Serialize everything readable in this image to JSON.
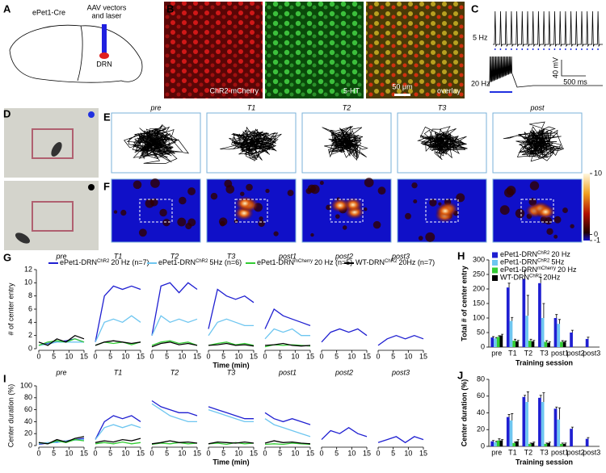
{
  "panel_letters": [
    "A",
    "B",
    "C",
    "D",
    "E",
    "F",
    "G",
    "H",
    "I",
    "J"
  ],
  "panel_a": {
    "strain": "ePet1-Cre",
    "injection": [
      "AAV vectors",
      "and laser"
    ],
    "target": "DRN"
  },
  "panel_b": {
    "labels": [
      "ChR2-mCherry",
      "5-HT",
      "overlay"
    ],
    "scale_bar": "50 μm"
  },
  "panel_c": {
    "traces": [
      "5 Hz",
      "20 Hz"
    ],
    "scale_y": "40 mV",
    "scale_x": "500 ms"
  },
  "panel_e": {
    "sessions": [
      "pre",
      "T1",
      "T2",
      "T3",
      "post"
    ]
  },
  "panel_f": {
    "colorbar": {
      "lim": [
        -1,
        10
      ],
      "ticks": [
        10,
        0,
        -1
      ]
    }
  },
  "chart_data": [
    {
      "type": "line",
      "ylabel": "# of center entry",
      "xlabel": "Time (min)",
      "sessions": [
        "pre",
        "T1",
        "T2",
        "T3",
        "post1",
        "post2",
        "post3"
      ],
      "x": [
        0,
        3,
        6,
        9,
        12,
        15
      ],
      "xlim": [
        0,
        15
      ],
      "xticks": [
        0,
        5,
        10,
        15
      ],
      "ylim": [
        0,
        12
      ],
      "yticks": [
        0,
        2,
        4,
        6,
        8,
        10,
        12
      ],
      "series": [
        {
          "name": "ePet1-DRN",
          "superscript": "ChR2",
          "suffix": "20 Hz (n=7)",
          "color": "#1f1fd1",
          "values": [
            [
              0.5,
              0.8,
              1,
              1.2,
              1.5,
              1
            ],
            [
              1,
              8,
              9.5,
              9,
              9.5,
              9
            ],
            [
              2,
              9.5,
              10,
              8.5,
              10,
              9
            ],
            [
              3,
              9,
              8,
              7.5,
              8,
              7
            ],
            [
              3,
              6,
              5,
              4.5,
              4,
              3.5
            ],
            [
              1,
              2.5,
              3,
              2.5,
              3,
              2
            ],
            [
              0.5,
              1.5,
              2,
              1.5,
              2,
              1.5
            ]
          ]
        },
        {
          "name": "ePet1-DRN",
          "superscript": "ChR2",
          "suffix": "5Hz (n=6)",
          "color": "#6ec6f0",
          "values": [
            [
              0.5,
              0.7,
              1,
              1,
              1,
              1
            ],
            [
              1,
              4,
              4.5,
              4,
              5,
              4
            ],
            [
              2,
              5,
              4,
              4.5,
              4,
              4.5
            ],
            [
              2,
              4,
              4.5,
              4,
              3.5,
              3.5
            ],
            [
              1.5,
              3,
              2.5,
              3,
              2,
              2
            ],
            null,
            null
          ]
        },
        {
          "name": "ePet1-DRN",
          "superscript": "mCherry",
          "suffix": "20 Hz (n=5)",
          "color": "#33cc33",
          "values": [
            [
              0.5,
              1,
              1.2,
              1,
              1.5,
              1
            ],
            [
              0.5,
              1,
              0.8,
              1,
              0.6,
              1
            ],
            [
              0.5,
              1,
              1.2,
              0.8,
              1,
              0.5
            ],
            [
              0.5,
              0.8,
              1,
              0.6,
              0.8,
              0.5
            ],
            [
              0.3,
              0.6,
              0.5,
              0.6,
              0.5,
              0.4
            ],
            null,
            null
          ]
        },
        {
          "name": "WT-DRN",
          "superscript": "ChR2",
          "suffix": "20Hz (n=7)",
          "color": "#000000",
          "values": [
            [
              1,
              0.5,
              1.5,
              1,
              2,
              1.5
            ],
            [
              0.5,
              1,
              1.2,
              1,
              0.8,
              1
            ],
            [
              0.3,
              0.8,
              1,
              0.6,
              0.8,
              0.5
            ],
            [
              0.5,
              0.6,
              0.8,
              0.5,
              0.6,
              0.4
            ],
            [
              0.5,
              0.6,
              0.8,
              0.5,
              0.4,
              0.5
            ],
            null,
            null
          ]
        }
      ]
    },
    {
      "type": "bar",
      "ylabel": "Total # of center entry",
      "xlabel": "Training session",
      "categories": [
        "pre",
        "T1",
        "T2",
        "T3",
        "post1",
        "post2",
        "post3"
      ],
      "ylim": [
        0,
        300
      ],
      "yticks": [
        0,
        50,
        100,
        150,
        200,
        250,
        300
      ],
      "series": [
        {
          "name": "ePet1-DRN",
          "superscript": "ChR2",
          "suffix": "20 Hz",
          "color": "#1f1fd1",
          "values": [
            33,
            205,
            235,
            220,
            100,
            50,
            28
          ],
          "errors": [
            3,
            15,
            30,
            20,
            12,
            8,
            6
          ]
        },
        {
          "name": "ePet1-DRN",
          "superscript": "ChR2",
          "suffix": "5Hz",
          "color": "#6ec6f0",
          "values": [
            30,
            90,
            108,
            100,
            80,
            null,
            null
          ],
          "errors": [
            3,
            12,
            70,
            50,
            15,
            null,
            null
          ]
        },
        {
          "name": "ePet1-DRN",
          "superscript": "mCherry",
          "suffix": "20 Hz",
          "color": "#33cc33",
          "values": [
            35,
            22,
            22,
            18,
            18,
            null,
            null
          ],
          "errors": [
            4,
            5,
            5,
            4,
            4,
            null,
            null
          ]
        },
        {
          "name": "WT-DRN",
          "superscript": "ChR2",
          "suffix": "20Hz",
          "color": "#000000",
          "values": [
            40,
            20,
            20,
            15,
            18,
            null,
            null
          ],
          "errors": [
            4,
            3,
            3,
            3,
            3,
            null,
            null
          ]
        }
      ]
    },
    {
      "type": "line",
      "ylabel": "Center duration (%)",
      "xlabel": "Time (min)",
      "sessions": [
        "pre",
        "T1",
        "T2",
        "T3",
        "post1",
        "post2",
        "post3"
      ],
      "x": [
        0,
        3,
        6,
        9,
        12,
        15
      ],
      "xlim": [
        0,
        15
      ],
      "xticks": [
        0,
        5,
        10,
        15
      ],
      "ylim": [
        0,
        100
      ],
      "yticks": [
        0,
        20,
        40,
        60,
        80,
        100
      ],
      "series": [
        {
          "color": "#1f1fd1",
          "values": [
            [
              2,
              4,
              6,
              8,
              10,
              12
            ],
            [
              10,
              40,
              50,
              45,
              50,
              40
            ],
            [
              75,
              65,
              60,
              55,
              55,
              50
            ],
            [
              65,
              60,
              55,
              50,
              45,
              45
            ],
            [
              55,
              45,
              40,
              45,
              40,
              35
            ],
            [
              10,
              25,
              20,
              30,
              20,
              15
            ],
            [
              5,
              10,
              15,
              5,
              15,
              10
            ]
          ]
        },
        {
          "color": "#6ec6f0",
          "values": [
            [
              3,
              5,
              5,
              8,
              9,
              10
            ],
            [
              10,
              30,
              35,
              30,
              35,
              30
            ],
            [
              70,
              60,
              50,
              45,
              40,
              40
            ],
            [
              60,
              55,
              50,
              45,
              40,
              40
            ],
            [
              45,
              35,
              30,
              25,
              20,
              15
            ],
            null,
            null
          ]
        },
        {
          "color": "#33cc33",
          "values": [
            [
              5,
              3,
              8,
              5,
              10,
              8
            ],
            [
              3,
              5,
              3,
              6,
              3,
              5
            ],
            [
              2,
              4,
              3,
              5,
              3,
              4
            ],
            [
              3,
              4,
              2,
              5,
              3,
              4
            ],
            [
              2,
              3,
              2,
              4,
              3,
              2
            ],
            null,
            null
          ]
        },
        {
          "color": "#000000",
          "values": [
            [
              5,
              3,
              10,
              6,
              12,
              15
            ],
            [
              5,
              8,
              6,
              10,
              8,
              12
            ],
            [
              3,
              5,
              8,
              5,
              6,
              4
            ],
            [
              3,
              6,
              5,
              4,
              6,
              4
            ],
            [
              4,
              8,
              5,
              6,
              4,
              3
            ],
            null,
            null
          ]
        }
      ]
    },
    {
      "type": "bar",
      "ylabel": "Center duration (%)",
      "xlabel": "Training session",
      "categories": [
        "pre",
        "T1",
        "T2",
        "T3",
        "post1",
        "post2",
        "post3"
      ],
      "ylim": [
        0,
        80
      ],
      "yticks": [
        0,
        20,
        40,
        60,
        80
      ],
      "series": [
        {
          "color": "#1f1fd1",
          "values": [
            6,
            35,
            59,
            58,
            45,
            21,
            9
          ],
          "errors": [
            1,
            3,
            2,
            3,
            2,
            2,
            1.5
          ]
        },
        {
          "color": "#6ec6f0",
          "values": [
            5,
            31,
            53,
            53,
            32,
            null,
            null
          ],
          "errors": [
            1,
            8,
            12,
            11,
            14,
            null,
            null
          ]
        },
        {
          "color": "#33cc33",
          "values": [
            7,
            4,
            3,
            3,
            3,
            null,
            null
          ],
          "errors": [
            2,
            1,
            1,
            1,
            1,
            null,
            null
          ]
        },
        {
          "color": "#000000",
          "values": [
            7,
            6,
            4,
            4,
            3,
            null,
            null
          ],
          "errors": [
            1,
            2,
            1,
            1,
            1,
            null,
            null
          ]
        }
      ]
    }
  ]
}
